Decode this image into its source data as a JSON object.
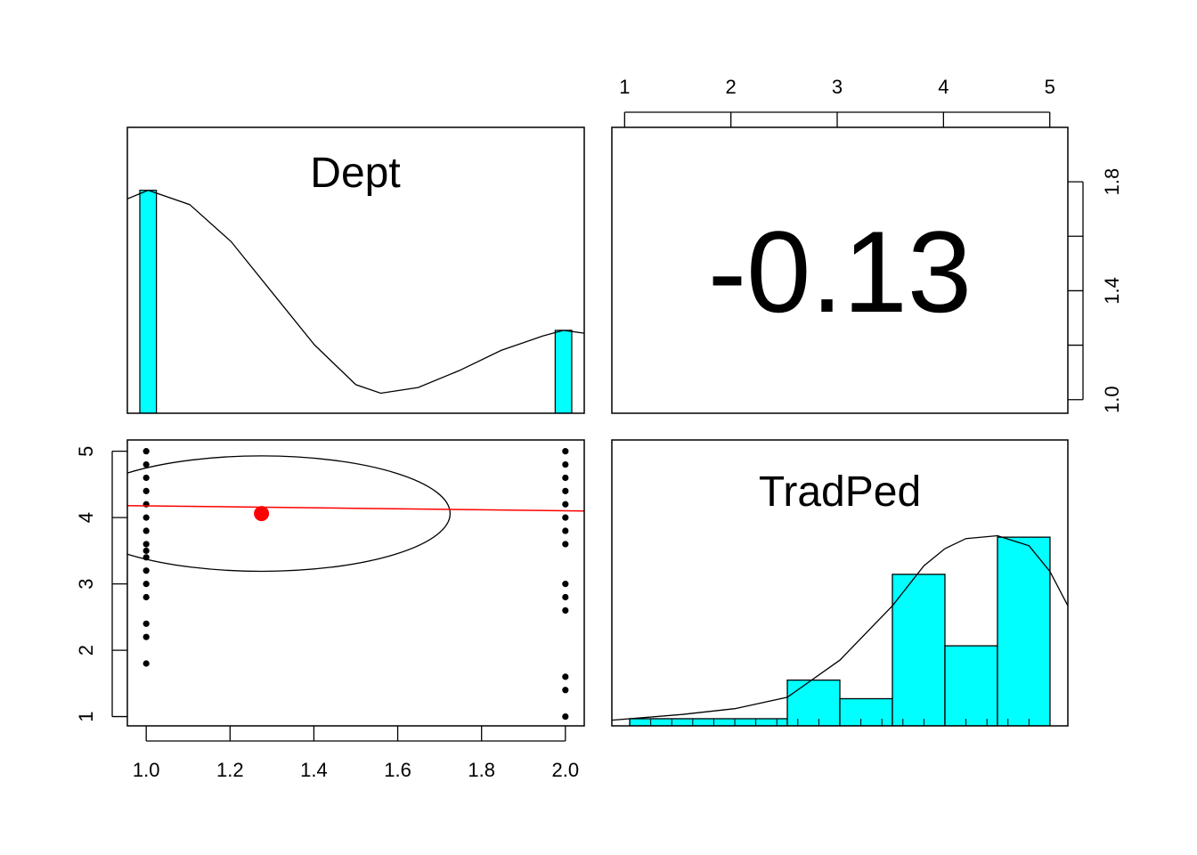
{
  "colors": {
    "bar_fill": "#00FFFF",
    "axis": "#000000",
    "fit_line": "#FF0000",
    "centroid": "#FF0000",
    "points": "#000000"
  },
  "chart_data": [
    {
      "id": "dept-hist",
      "type": "bar",
      "title": "Dept",
      "x_range": [
        0.95,
        2.05
      ],
      "y_range": [
        0,
        1
      ],
      "bars": [
        {
          "x0": 0.98,
          "x1": 1.02,
          "height": 0.78
        },
        {
          "x0": 1.98,
          "x1": 2.02,
          "height": 0.29
        }
      ],
      "density_curve": [
        [
          0.95,
          0.75
        ],
        [
          1.0,
          0.78
        ],
        [
          1.1,
          0.73
        ],
        [
          1.2,
          0.6
        ],
        [
          1.3,
          0.42
        ],
        [
          1.4,
          0.24
        ],
        [
          1.5,
          0.1
        ],
        [
          1.56,
          0.07
        ],
        [
          1.65,
          0.09
        ],
        [
          1.75,
          0.15
        ],
        [
          1.85,
          0.22
        ],
        [
          1.95,
          0.27
        ],
        [
          2.0,
          0.29
        ],
        [
          2.05,
          0.28
        ]
      ]
    },
    {
      "id": "correlation",
      "type": "table",
      "value": "-0.13",
      "top_axis": {
        "ticks": [
          1,
          2,
          3,
          4,
          5
        ],
        "labels": [
          "1",
          "2",
          "3",
          "4",
          "5"
        ],
        "range": [
          0.88,
          5.17
        ]
      },
      "right_axis": {
        "ticks": [
          1.0,
          1.2,
          1.4,
          1.6,
          1.8
        ],
        "labels": [
          "1.0",
          "1.4",
          "1.8"
        ],
        "range": [
          0.95,
          2.0
        ]
      }
    },
    {
      "id": "scatter",
      "type": "scatter",
      "x_range": [
        0.955,
        2.045
      ],
      "y_range": [
        0.86,
        5.17
      ],
      "x_ticks": [
        1.0,
        1.2,
        1.4,
        1.6,
        1.8,
        2.0
      ],
      "x_tick_labels": [
        "1.0",
        "1.2",
        "1.4",
        "1.6",
        "1.8",
        "2.0"
      ],
      "y_ticks": [
        1,
        2,
        3,
        4,
        5
      ],
      "y_tick_labels": [
        "1",
        "2",
        "3",
        "4",
        "5"
      ],
      "points": {
        "x1_values": [
          5.0,
          4.8,
          4.6,
          4.4,
          4.2,
          4.0,
          3.8,
          3.6,
          3.5,
          3.4,
          3.2,
          3.0,
          2.8,
          2.4,
          2.2,
          1.8
        ],
        "x2_values": [
          5.0,
          4.8,
          4.6,
          4.4,
          4.2,
          4.0,
          3.8,
          3.6,
          3.0,
          2.8,
          2.6,
          1.6,
          1.4,
          1.0
        ]
      },
      "fit_line": [
        [
          0.955,
          4.18
        ],
        [
          1.5,
          4.14
        ],
        [
          2.045,
          4.1
        ]
      ],
      "centroid": [
        1.275,
        4.06
      ],
      "ellipse": {
        "cx": 1.275,
        "cy": 4.06,
        "rx_data": 0.45,
        "ry_data": 0.87
      }
    },
    {
      "id": "tradped-hist",
      "type": "bar",
      "title": "TradPed",
      "x_range": [
        0.83,
        5.17
      ],
      "y_range": [
        0,
        1
      ],
      "bars": [
        {
          "x0": 1.0,
          "x1": 2.5,
          "height": 0.025
        },
        {
          "x0": 2.5,
          "x1": 3.0,
          "height": 0.16
        },
        {
          "x0": 3.0,
          "x1": 3.5,
          "height": 0.095
        },
        {
          "x0": 3.5,
          "x1": 4.0,
          "height": 0.53
        },
        {
          "x0": 4.0,
          "x1": 4.5,
          "height": 0.28
        },
        {
          "x0": 4.5,
          "x1": 5.0,
          "height": 0.66
        }
      ],
      "density_curve": [
        [
          0.83,
          0.02
        ],
        [
          1.5,
          0.04
        ],
        [
          2.0,
          0.06
        ],
        [
          2.5,
          0.1
        ],
        [
          3.0,
          0.23
        ],
        [
          3.5,
          0.42
        ],
        [
          3.8,
          0.56
        ],
        [
          4.0,
          0.62
        ],
        [
          4.2,
          0.655
        ],
        [
          4.5,
          0.665
        ],
        [
          4.8,
          0.63
        ],
        [
          5.0,
          0.54
        ],
        [
          5.17,
          0.42
        ]
      ]
    }
  ]
}
